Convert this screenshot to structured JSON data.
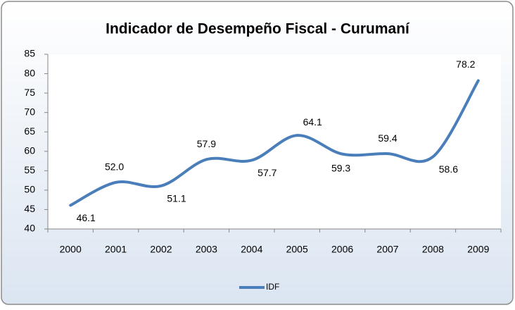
{
  "chart_data": {
    "type": "line",
    "title": "Indicador de Desempeño Fiscal - Curumaní",
    "categories": [
      "2000",
      "2001",
      "2002",
      "2003",
      "2004",
      "2005",
      "2006",
      "2007",
      "2008",
      "2009"
    ],
    "series": [
      {
        "name": "IDF",
        "color": "#4a7ebb",
        "values": [
          46.1,
          52.0,
          51.1,
          57.9,
          57.7,
          64.1,
          59.3,
          59.4,
          58.6,
          78.2
        ],
        "value_labels": [
          "46.1",
          "52.0",
          "51.1",
          "57.9",
          "57.7",
          "64.1",
          "59.3",
          "59.4",
          "58.6",
          "78.2"
        ]
      }
    ],
    "ylim": [
      40,
      85
    ],
    "yticks": [
      40,
      45,
      50,
      55,
      60,
      65,
      70,
      75,
      80,
      85
    ],
    "smooth": true,
    "legend": "bottom"
  }
}
